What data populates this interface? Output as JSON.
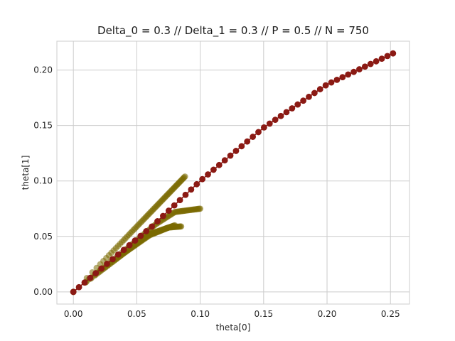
{
  "chart_data": {
    "type": "scatter",
    "title": "Delta_0 = 0.3 // Delta_1 = 0.3 // P = 0.5 // N = 750",
    "xlabel": "theta[0]",
    "ylabel": "theta[1]",
    "xlim": [
      -0.013,
      0.265
    ],
    "ylim": [
      -0.011,
      0.226
    ],
    "xticks": [
      0.0,
      0.05,
      0.1,
      0.15,
      0.2,
      0.25
    ],
    "xtick_labels": [
      "0.00",
      "0.05",
      "0.10",
      "0.15",
      "0.20",
      "0.25"
    ],
    "yticks": [
      0.0,
      0.05,
      0.1,
      0.15,
      0.2
    ],
    "ytick_labels": [
      "0.00",
      "0.05",
      "0.10",
      "0.15",
      "0.20"
    ],
    "grid": true,
    "series": [
      {
        "color": "#8b1a14",
        "style": "line-markers",
        "x": [
          0.0,
          0.062,
          0.1,
          0.15,
          0.2,
          0.252
        ],
        "y": [
          0.0,
          0.059,
          0.1,
          0.148,
          0.187,
          0.215
        ]
      },
      {
        "color": "#7a6a00",
        "style": "markers",
        "x": [
          0.0,
          0.04,
          0.088
        ],
        "y": [
          0.0,
          0.047,
          0.104
        ]
      },
      {
        "color": "#7a6a00",
        "style": "markers",
        "x": [
          0.0,
          0.04,
          0.065,
          0.08,
          0.1
        ],
        "y": [
          0.0,
          0.037,
          0.061,
          0.072,
          0.075
        ]
      },
      {
        "color": "#7a6a00",
        "style": "markers",
        "x": [
          0.0,
          0.04,
          0.06,
          0.075,
          0.085
        ],
        "y": [
          0.0,
          0.035,
          0.051,
          0.058,
          0.059
        ]
      },
      {
        "color": "#7a6a00",
        "style": "markers",
        "x": [
          0.0,
          0.04,
          0.06,
          0.08
        ],
        "y": [
          0.0,
          0.035,
          0.052,
          0.06
        ]
      }
    ]
  }
}
